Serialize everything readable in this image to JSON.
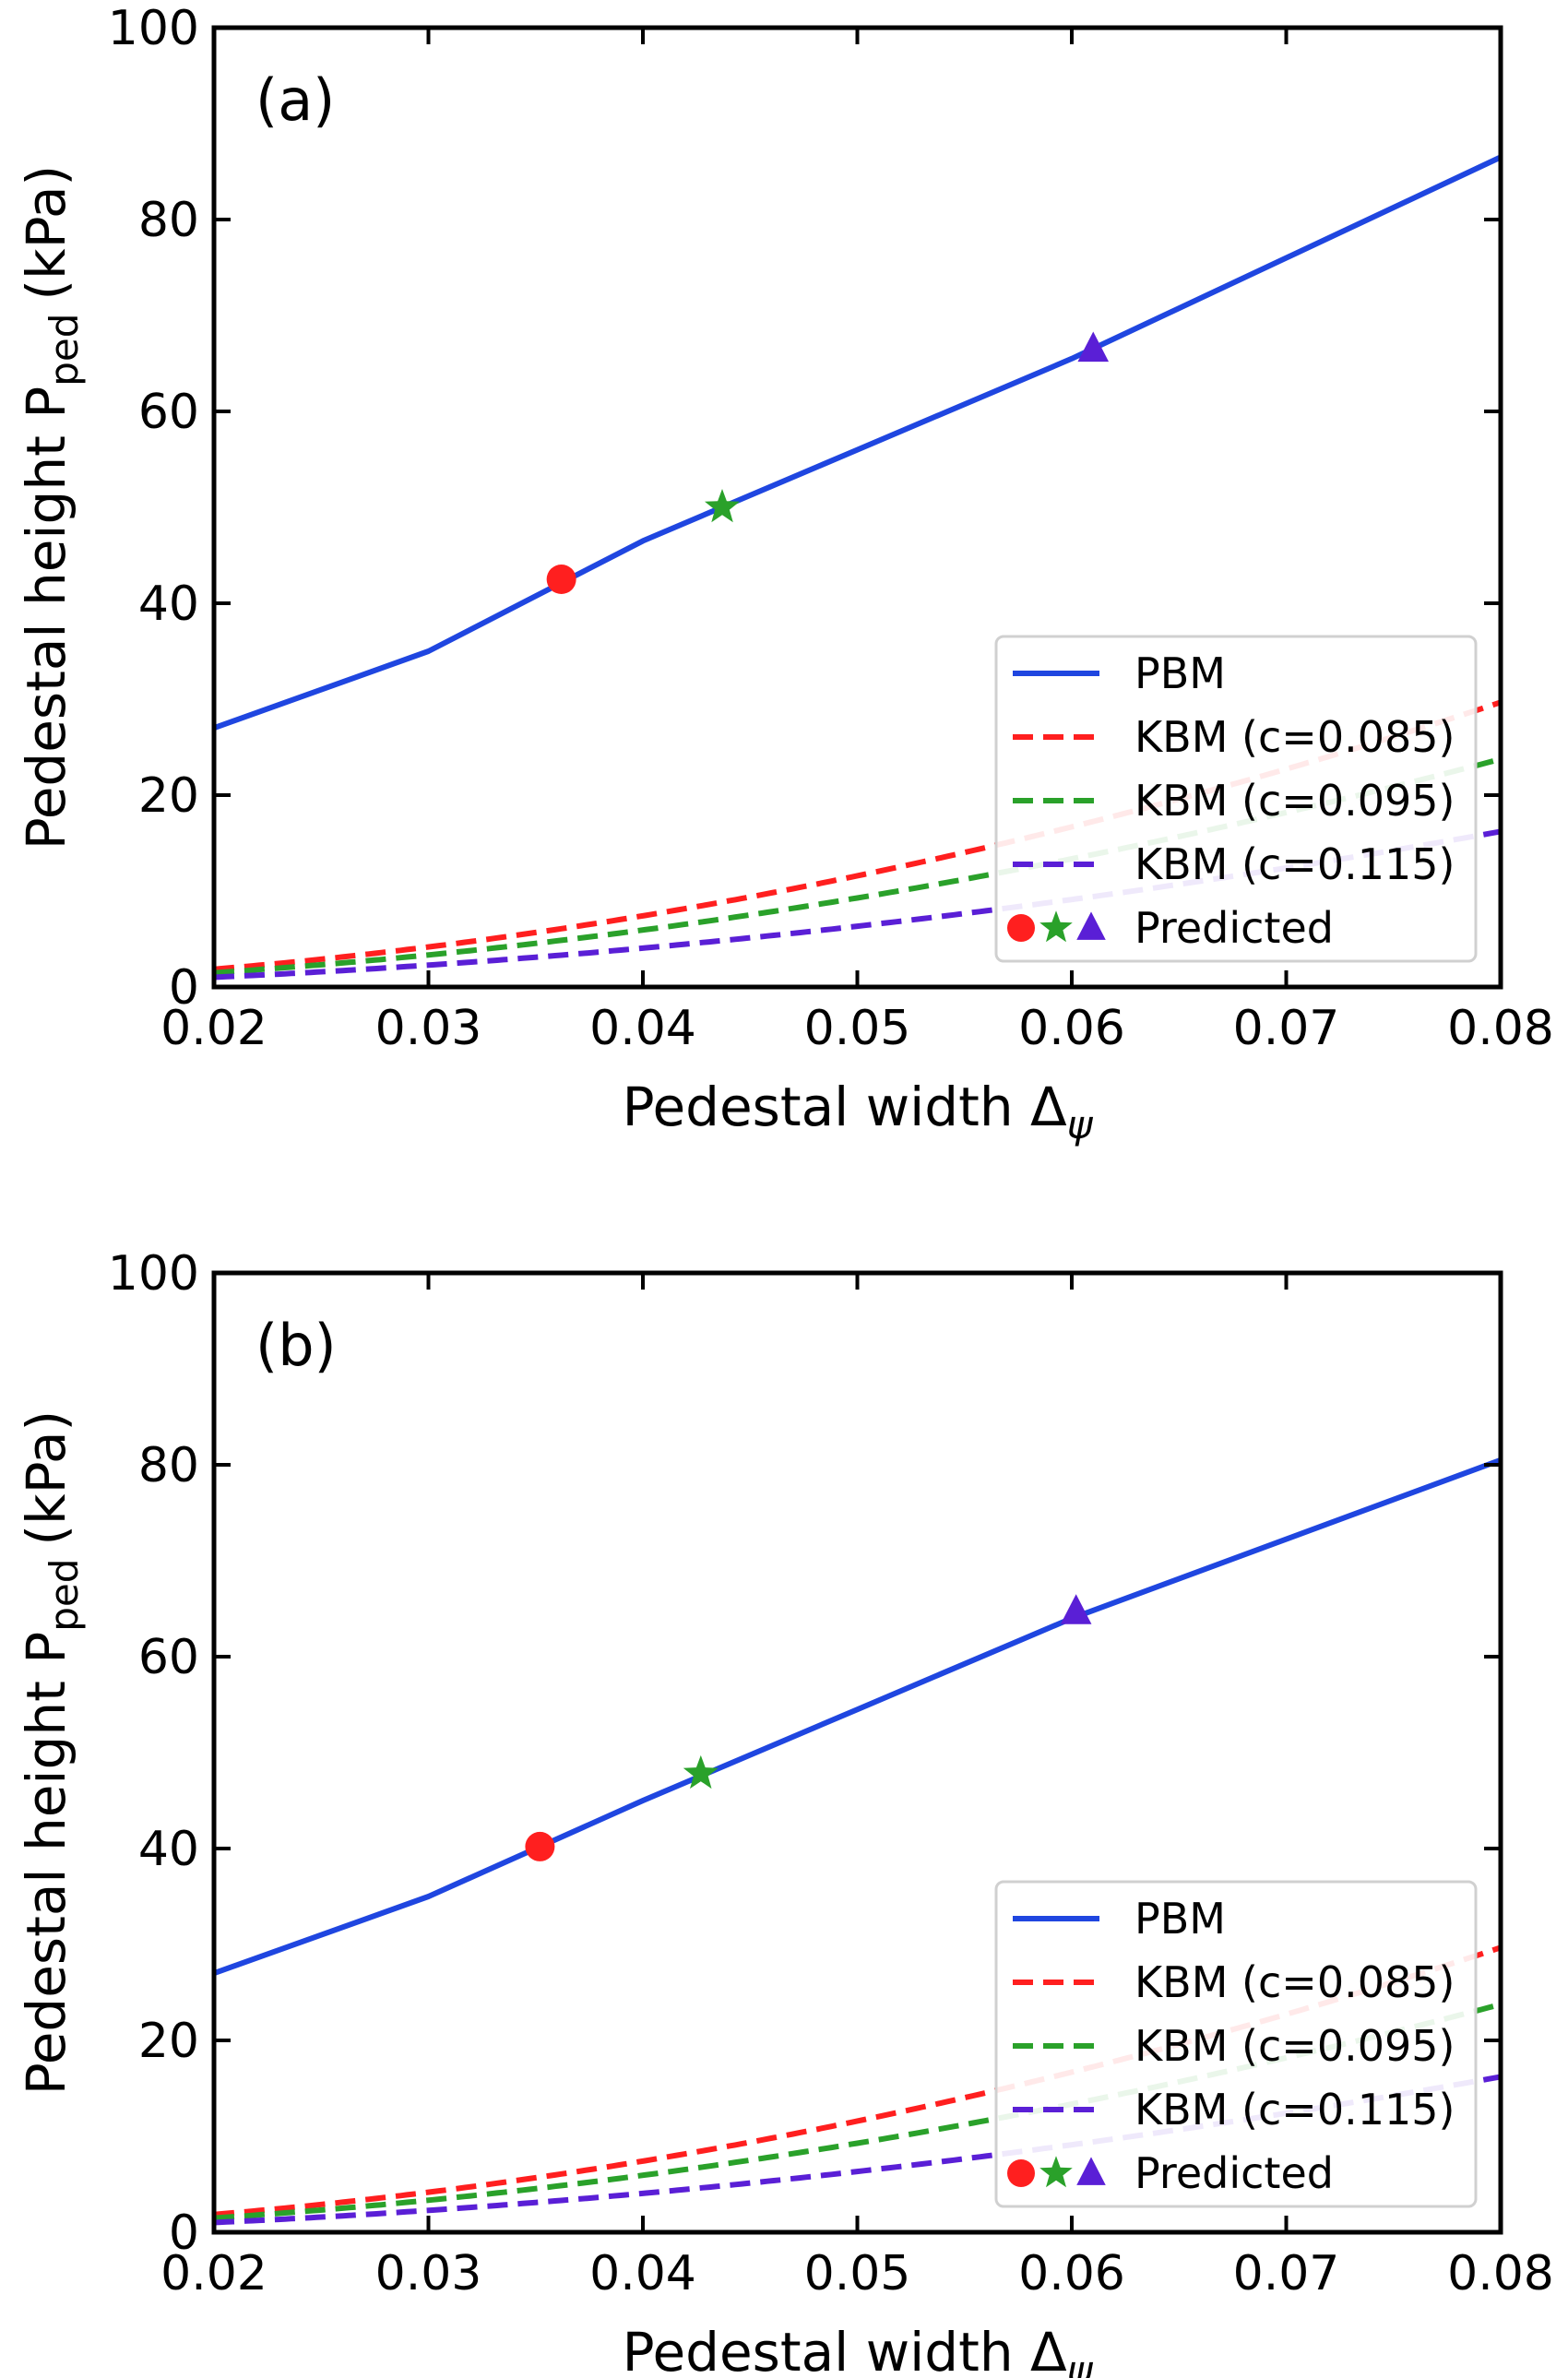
{
  "colors": {
    "PBM": "#1f46e0",
    "KBM (c=0.085)": "#ff1f1f",
    "KBM (c=0.095)": "#2aa12a",
    "KBM (c=0.115)": "#5a1fd6",
    "axis": "#000000"
  },
  "chart_data": [
    {
      "panel": "(a)",
      "type": "line",
      "xlabel": "Pedestal width Δψ",
      "xlabel_main": "Pedestal width Δ",
      "xlabel_sub": "ψ",
      "ylabel_main": "Pedestal height P",
      "ylabel_sub": "ped",
      "ylabel_unit": "(kPa)",
      "xlim": [
        0.02,
        0.08
      ],
      "ylim": [
        0,
        100
      ],
      "xticks": [
        "0.02",
        "0.03",
        "0.04",
        "0.05",
        "0.06",
        "0.07",
        "0.08"
      ],
      "yticks": [
        "0",
        "20",
        "40",
        "60",
        "80",
        "100"
      ],
      "legend_position": "lower-right",
      "series": [
        {
          "name": "PBM",
          "style": "solid",
          "x": [
            0.02,
            0.03,
            0.04,
            0.05,
            0.06,
            0.08
          ],
          "y": [
            27,
            35,
            46.5,
            56,
            65.5,
            86.5
          ]
        },
        {
          "name": "KBM (c=0.085)",
          "style": "dashed",
          "coef": 0.085
        },
        {
          "name": "KBM (c=0.095)",
          "style": "dashed",
          "coef": 0.095
        },
        {
          "name": "KBM (c=0.115)",
          "style": "dashed",
          "coef": 0.115
        }
      ],
      "predicted": [
        {
          "marker": "circle",
          "series": "KBM (c=0.085)",
          "x": 0.0362,
          "y": 42.5
        },
        {
          "marker": "star",
          "series": "KBM (c=0.095)",
          "x": 0.0437,
          "y": 50
        },
        {
          "marker": "triangle",
          "series": "KBM (c=0.115)",
          "x": 0.061,
          "y": 66.5
        }
      ],
      "legend": [
        "PBM",
        "KBM (c=0.085)",
        "KBM (c=0.095)",
        "KBM (c=0.115)",
        "Predicted"
      ]
    },
    {
      "panel": "(b)",
      "type": "line",
      "xlabel": "Pedestal width Δψ",
      "xlabel_main": "Pedestal width Δ",
      "xlabel_sub": "ψ",
      "ylabel_main": "Pedestal height P",
      "ylabel_sub": "ped",
      "ylabel_unit": "(kPa)",
      "xlim": [
        0.02,
        0.08
      ],
      "ylim": [
        0,
        100
      ],
      "xticks": [
        "0.02",
        "0.03",
        "0.04",
        "0.05",
        "0.06",
        "0.07",
        "0.08"
      ],
      "yticks": [
        "0",
        "20",
        "40",
        "60",
        "80",
        "100"
      ],
      "legend_position": "lower-right",
      "series": [
        {
          "name": "PBM",
          "style": "solid",
          "x": [
            0.02,
            0.03,
            0.04,
            0.05,
            0.06,
            0.08
          ],
          "y": [
            27,
            35,
            45,
            54.5,
            64,
            80.5
          ]
        },
        {
          "name": "KBM (c=0.085)",
          "style": "dashed",
          "coef": 0.085
        },
        {
          "name": "KBM (c=0.095)",
          "style": "dashed",
          "coef": 0.095
        },
        {
          "name": "KBM (c=0.115)",
          "style": "dashed",
          "coef": 0.115
        }
      ],
      "predicted": [
        {
          "marker": "circle",
          "series": "KBM (c=0.085)",
          "x": 0.0352,
          "y": 40.2
        },
        {
          "marker": "star",
          "series": "KBM (c=0.095)",
          "x": 0.0427,
          "y": 47.8
        },
        {
          "marker": "triangle",
          "series": "KBM (c=0.115)",
          "x": 0.0602,
          "y": 64.7
        }
      ],
      "legend": [
        "PBM",
        "KBM (c=0.085)",
        "KBM (c=0.095)",
        "KBM (c=0.115)",
        "Predicted"
      ]
    }
  ]
}
